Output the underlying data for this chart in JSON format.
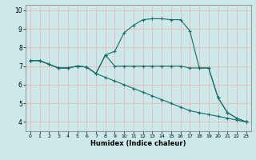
{
  "title": "",
  "xlabel": "Humidex (Indice chaleur)",
  "background_color": "#cce8e8",
  "grid_color": "#e8b8b8",
  "line_color": "#1a6b6b",
  "xlim": [
    -0.5,
    23.5
  ],
  "ylim": [
    3.5,
    10.3
  ],
  "xticks": [
    0,
    1,
    2,
    3,
    4,
    5,
    6,
    7,
    8,
    9,
    10,
    11,
    12,
    13,
    14,
    15,
    16,
    17,
    18,
    19,
    20,
    21,
    22,
    23
  ],
  "yticks": [
    4,
    5,
    6,
    7,
    8,
    9,
    10
  ],
  "series": [
    {
      "x": [
        0,
        1,
        2,
        3,
        4,
        5,
        6,
        7,
        8,
        9,
        10,
        11,
        12,
        13,
        14,
        15,
        16,
        17,
        18,
        19,
        20,
        21,
        22,
        23
      ],
      "y": [
        7.3,
        7.3,
        7.1,
        6.9,
        6.9,
        7.0,
        6.95,
        6.6,
        7.6,
        7.8,
        8.8,
        9.2,
        9.5,
        9.55,
        9.55,
        9.5,
        9.5,
        8.9,
        6.9,
        6.9,
        5.3,
        4.5,
        4.2,
        4.0
      ]
    },
    {
      "x": [
        0,
        1,
        2,
        3,
        4,
        5,
        6,
        7,
        8,
        9,
        10,
        11,
        12,
        13,
        14,
        15,
        16,
        17,
        18,
        19,
        20,
        21,
        22,
        23
      ],
      "y": [
        7.3,
        7.3,
        7.1,
        6.9,
        6.9,
        7.0,
        6.95,
        6.6,
        7.6,
        7.0,
        7.0,
        7.0,
        7.0,
        7.0,
        7.0,
        7.0,
        7.0,
        6.9,
        6.9,
        6.9,
        5.3,
        4.5,
        4.2,
        4.0
      ]
    },
    {
      "x": [
        0,
        1,
        2,
        3,
        4,
        5,
        6,
        7,
        8,
        9,
        10,
        11,
        12,
        13,
        14,
        15,
        16,
        17,
        18,
        19,
        20,
        21,
        22,
        23
      ],
      "y": [
        7.3,
        7.3,
        7.1,
        6.9,
        6.9,
        7.0,
        6.95,
        6.6,
        6.4,
        6.2,
        6.0,
        5.8,
        5.6,
        5.4,
        5.2,
        5.0,
        4.8,
        4.6,
        4.5,
        4.4,
        4.3,
        4.2,
        4.1,
        4.0
      ]
    }
  ]
}
